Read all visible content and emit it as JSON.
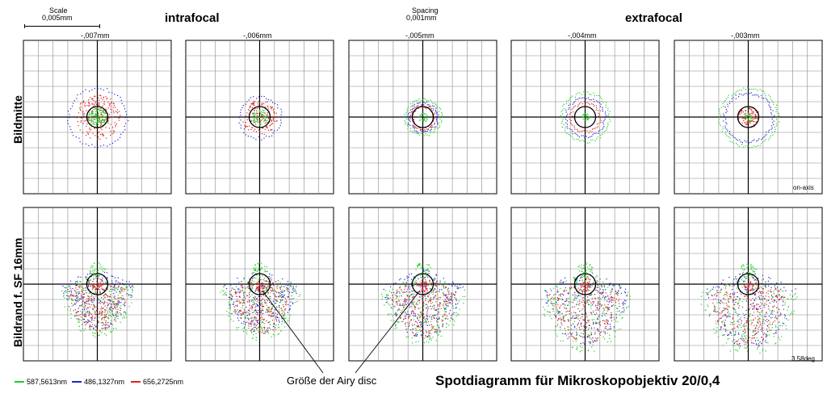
{
  "scale": {
    "label": "Scale",
    "value": "0,005mm"
  },
  "spacing": {
    "label": "Spacing",
    "value": "0,001mm"
  },
  "headers": {
    "intrafocal": "intrafocal",
    "extrafocal": "extrafocal"
  },
  "columns": [
    "-,007mm",
    "-,006mm",
    "-,005mm",
    "-,004mm",
    "-,003mm"
  ],
  "rows": [
    {
      "label": "Bildmitte",
      "field_label": "on-axis"
    },
    {
      "label": "Bildrand f. SF 16mm",
      "field_label": "3,58deg"
    }
  ],
  "legend": [
    {
      "label": "587,5613nm",
      "color": "#22cc22"
    },
    {
      "label": "486,1327nm",
      "color": "#2222cc"
    },
    {
      "label": "656,2725nm",
      "color": "#dd2222"
    }
  ],
  "annotation": "Größe der Airy disc",
  "title": "Spotdiagramm für Mikroskopobjektiv 20/0,4"
}
